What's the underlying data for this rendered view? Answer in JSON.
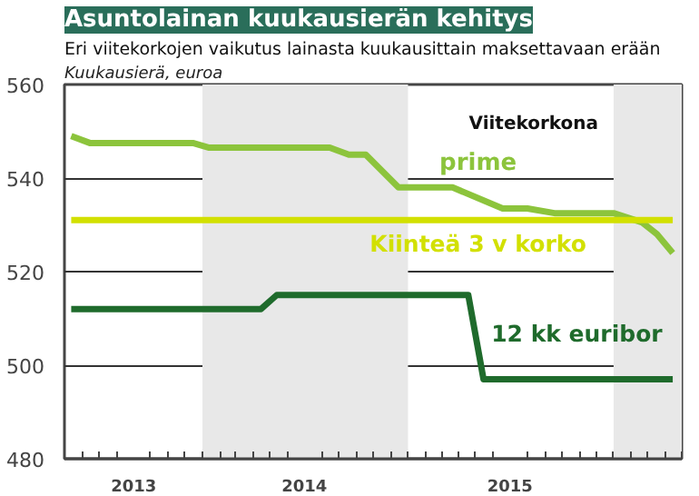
{
  "chart_data": {
    "type": "line",
    "title": "Asuntolainan kuukausierän kehitys",
    "subtitle": "Eri viitekorkojen vaikutus lainasta kuukausittain maksettavaan erään",
    "ylabel": "Kuukausierä, euroa",
    "legend_title": "Viitekorkona",
    "series": [
      {
        "name": "prime",
        "color": "#8cc43c",
        "x": [
          "2013-05-13",
          "2013-06-15",
          "2013-12-15",
          "2014-01-13",
          "2014-08-15",
          "2014-09-18",
          "2014-10-18",
          "2014-12-15",
          "2015-03-21",
          "2015-06-18",
          "2015-08-01",
          "2015-09-18",
          "2016-01-01",
          "2016-02-21",
          "2016-03-18",
          "2016-04-15"
        ],
        "values": [
          549,
          547.5,
          547.5,
          546.5,
          546.5,
          545,
          545,
          538,
          538,
          533.5,
          533.5,
          532.5,
          532.5,
          530.5,
          528,
          524
        ]
      },
      {
        "name": "Kiinteä 3 v korko",
        "color": "#d2e000",
        "x": [
          "2013-05-13",
          "2016-04-15"
        ],
        "values": [
          531,
          531
        ]
      },
      {
        "name": "12 kk euribor",
        "color": "#1f6b2c",
        "x": [
          "2013-05-13",
          "2014-04-15",
          "2014-05-13",
          "2015-04-18",
          "2015-05-15",
          "2016-04-15"
        ],
        "values": [
          512,
          512,
          515,
          515,
          497,
          497
        ]
      }
    ],
    "xlim": [
      "2013-05-01",
      "2016-05-01"
    ],
    "xticks": [
      {
        "value": "2013-05-01",
        "label": null
      },
      {
        "value": "2013-06-01",
        "label": null
      },
      {
        "value": "2013-07-01",
        "label": null
      },
      {
        "value": "2013-08-01",
        "label": null
      },
      {
        "value": "2013-09-01",
        "label": "2013"
      },
      {
        "value": "2013-10-01",
        "label": null
      },
      {
        "value": "2013-11-01",
        "label": null
      },
      {
        "value": "2013-12-01",
        "label": null
      },
      {
        "value": "2014-01-01",
        "label": null
      },
      {
        "value": "2014-02-01",
        "label": null
      },
      {
        "value": "2014-03-01",
        "label": null
      },
      {
        "value": "2014-04-01",
        "label": null
      },
      {
        "value": "2014-05-01",
        "label": null
      },
      {
        "value": "2014-06-01",
        "label": null
      },
      {
        "value": "2014-07-01",
        "label": "2014"
      },
      {
        "value": "2014-08-01",
        "label": null
      },
      {
        "value": "2014-09-01",
        "label": null
      },
      {
        "value": "2014-10-01",
        "label": null
      },
      {
        "value": "2014-11-01",
        "label": null
      },
      {
        "value": "2014-12-01",
        "label": null
      },
      {
        "value": "2015-01-01",
        "label": null
      },
      {
        "value": "2015-02-01",
        "label": null
      },
      {
        "value": "2015-03-01",
        "label": null
      },
      {
        "value": "2015-04-01",
        "label": null
      },
      {
        "value": "2015-05-01",
        "label": null
      },
      {
        "value": "2015-06-01",
        "label": null
      },
      {
        "value": "2015-07-01",
        "label": "2015"
      },
      {
        "value": "2015-08-01",
        "label": null
      },
      {
        "value": "2015-09-01",
        "label": null
      },
      {
        "value": "2015-10-01",
        "label": null
      },
      {
        "value": "2015-11-01",
        "label": null
      },
      {
        "value": "2015-12-01",
        "label": null
      },
      {
        "value": "2016-01-01",
        "label": null
      },
      {
        "value": "2016-02-01",
        "label": null
      },
      {
        "value": "2016-03-01",
        "label": null
      },
      {
        "value": "2016-04-01",
        "label": null
      },
      {
        "value": "2016-05-01",
        "label": null
      }
    ],
    "ylim": [
      480,
      560
    ],
    "yticks": [
      480,
      500,
      520,
      540,
      560
    ],
    "grid": "y",
    "bands": [
      {
        "axis": "x",
        "from": "2014-01-01",
        "to": "2015-01-01",
        "color": "#e8e8e8"
      },
      {
        "axis": "x",
        "from": "2016-01-01",
        "to": "2016-05-01",
        "color": "#e8e8e8"
      }
    ]
  }
}
